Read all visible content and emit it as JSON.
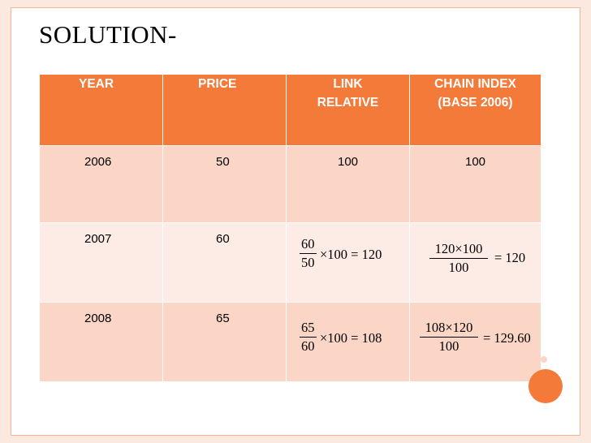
{
  "title": "SOLUTION-",
  "headers": {
    "year": "YEAR",
    "price": "PRICE",
    "link_line1": "LINK",
    "link_line2": "RELATIVE",
    "chain_line1": "CHAIN INDEX",
    "chain_line2": "(BASE 2006)"
  },
  "rows": [
    {
      "year": "2006",
      "price": "50",
      "link": "100",
      "chain": "100"
    },
    {
      "year": "2007",
      "price": "60",
      "link_num": "60",
      "link_den": "50",
      "link_rest": "×100 = 120",
      "chain_num": "120×100",
      "chain_den": "100",
      "chain_rest": "= 120"
    },
    {
      "year": "2008",
      "price": "65",
      "link_num": "65",
      "link_den": "60",
      "link_rest": "×100 = 108",
      "chain_num": "108×120",
      "chain_den": "100",
      "chain_rest": "= 129.60"
    }
  ],
  "colors": {
    "header": "#f47a3a",
    "row_dark": "#fbd6c7",
    "row_light": "#fdebe5",
    "accent": "#f47a3a"
  }
}
